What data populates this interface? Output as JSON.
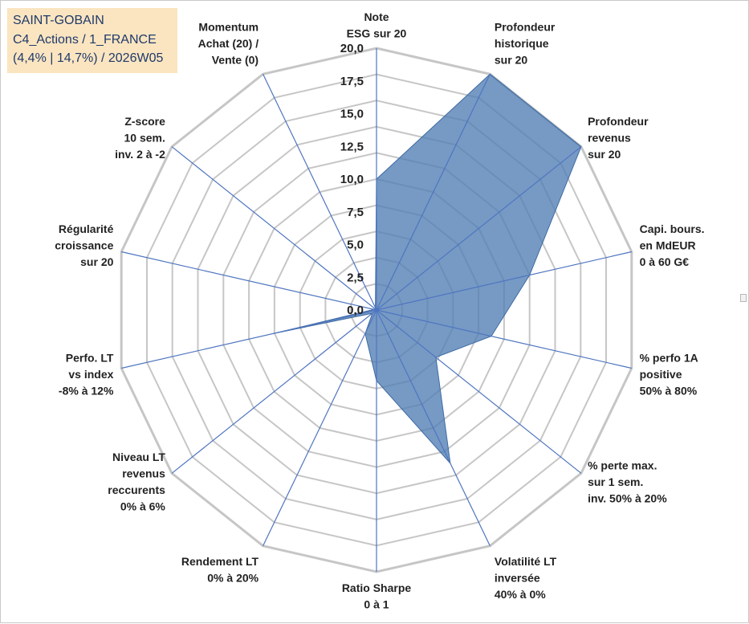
{
  "title_box": {
    "line1": "SAINT-GOBAIN",
    "line2": "C4_Actions / 1_FRANCE",
    "line3": "(4,4% | 14,7%) / 2026W05"
  },
  "chart_data": {
    "type": "radar",
    "rmin": 0,
    "rmax": 20,
    "ticks": [
      "0,0",
      "2,5",
      "5,0",
      "7,5",
      "10,0",
      "12,5",
      "15,0",
      "17,5",
      "20,0"
    ],
    "tick_values": [
      0,
      2.5,
      5,
      7.5,
      10,
      12.5,
      15,
      17.5,
      20
    ],
    "grid_rings": 10,
    "axes": [
      [
        "Note",
        "ESG sur 20"
      ],
      [
        "Profondeur",
        "historique",
        "sur 20"
      ],
      [
        "Profondeur",
        "revenus",
        "sur 20"
      ],
      [
        "Capi. bours.",
        "en MdEUR",
        "0 à 60 G€"
      ],
      [
        "% perfo 1A",
        "positive",
        "50% à 80%"
      ],
      [
        "% perte max.",
        "sur 1 sem.",
        "inv. 50% à 20%"
      ],
      [
        "Volatilité LT",
        "inversée",
        "40% à 0%"
      ],
      [
        "Ratio Sharpe",
        "0 à 1"
      ],
      [
        "Rendement LT",
        "0% à 20%"
      ],
      [
        "Niveau LT",
        "revenus",
        "reccurents",
        "0% à 6%"
      ],
      [
        "Perfo. LT",
        "vs index",
        "-8% à 12%"
      ],
      [
        "Régularité",
        "croissance",
        "sur 20"
      ],
      [
        "Z-score",
        "10 sem.",
        "inv. 2 à -2"
      ],
      [
        "Momentum",
        "Achat (20) /",
        "Vente (0)"
      ]
    ],
    "series": [
      {
        "values": [
          10,
          20,
          20,
          12,
          9,
          5.8,
          13,
          5.4,
          2,
          0.4,
          8.2,
          0.2,
          0.1,
          0.2
        ],
        "color": "#4f7db3"
      }
    ],
    "colors": {
      "fill": "#4f7db3",
      "axis_line": "#4f75c0",
      "grid": "#c6c6c6"
    }
  }
}
